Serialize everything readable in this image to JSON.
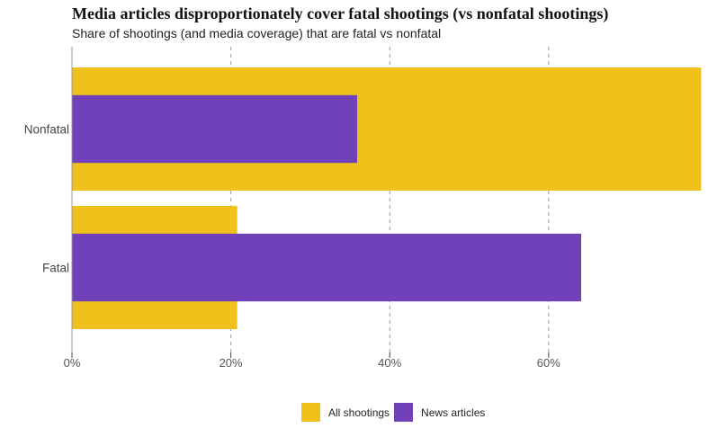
{
  "chart_data": {
    "type": "bar",
    "orientation": "horizontal",
    "title": "Media articles disproportionately cover fatal shootings (vs nonfatal shootings)",
    "subtitle": "Share of shootings (and media coverage) that are fatal vs nonfatal",
    "categories": [
      "Nonfatal",
      "Fatal"
    ],
    "series": [
      {
        "name": "All shootings",
        "color": "#f0c11b",
        "values": [
          79.2,
          20.8
        ]
      },
      {
        "name": "News articles",
        "color": "#7041b8",
        "values": [
          35.9,
          64.1
        ]
      }
    ],
    "x_ticks": [
      "0%",
      "20%",
      "40%",
      "60%"
    ],
    "xlim": [
      0,
      79.2
    ],
    "grid": "vertical dashed",
    "legend": "bottom"
  }
}
